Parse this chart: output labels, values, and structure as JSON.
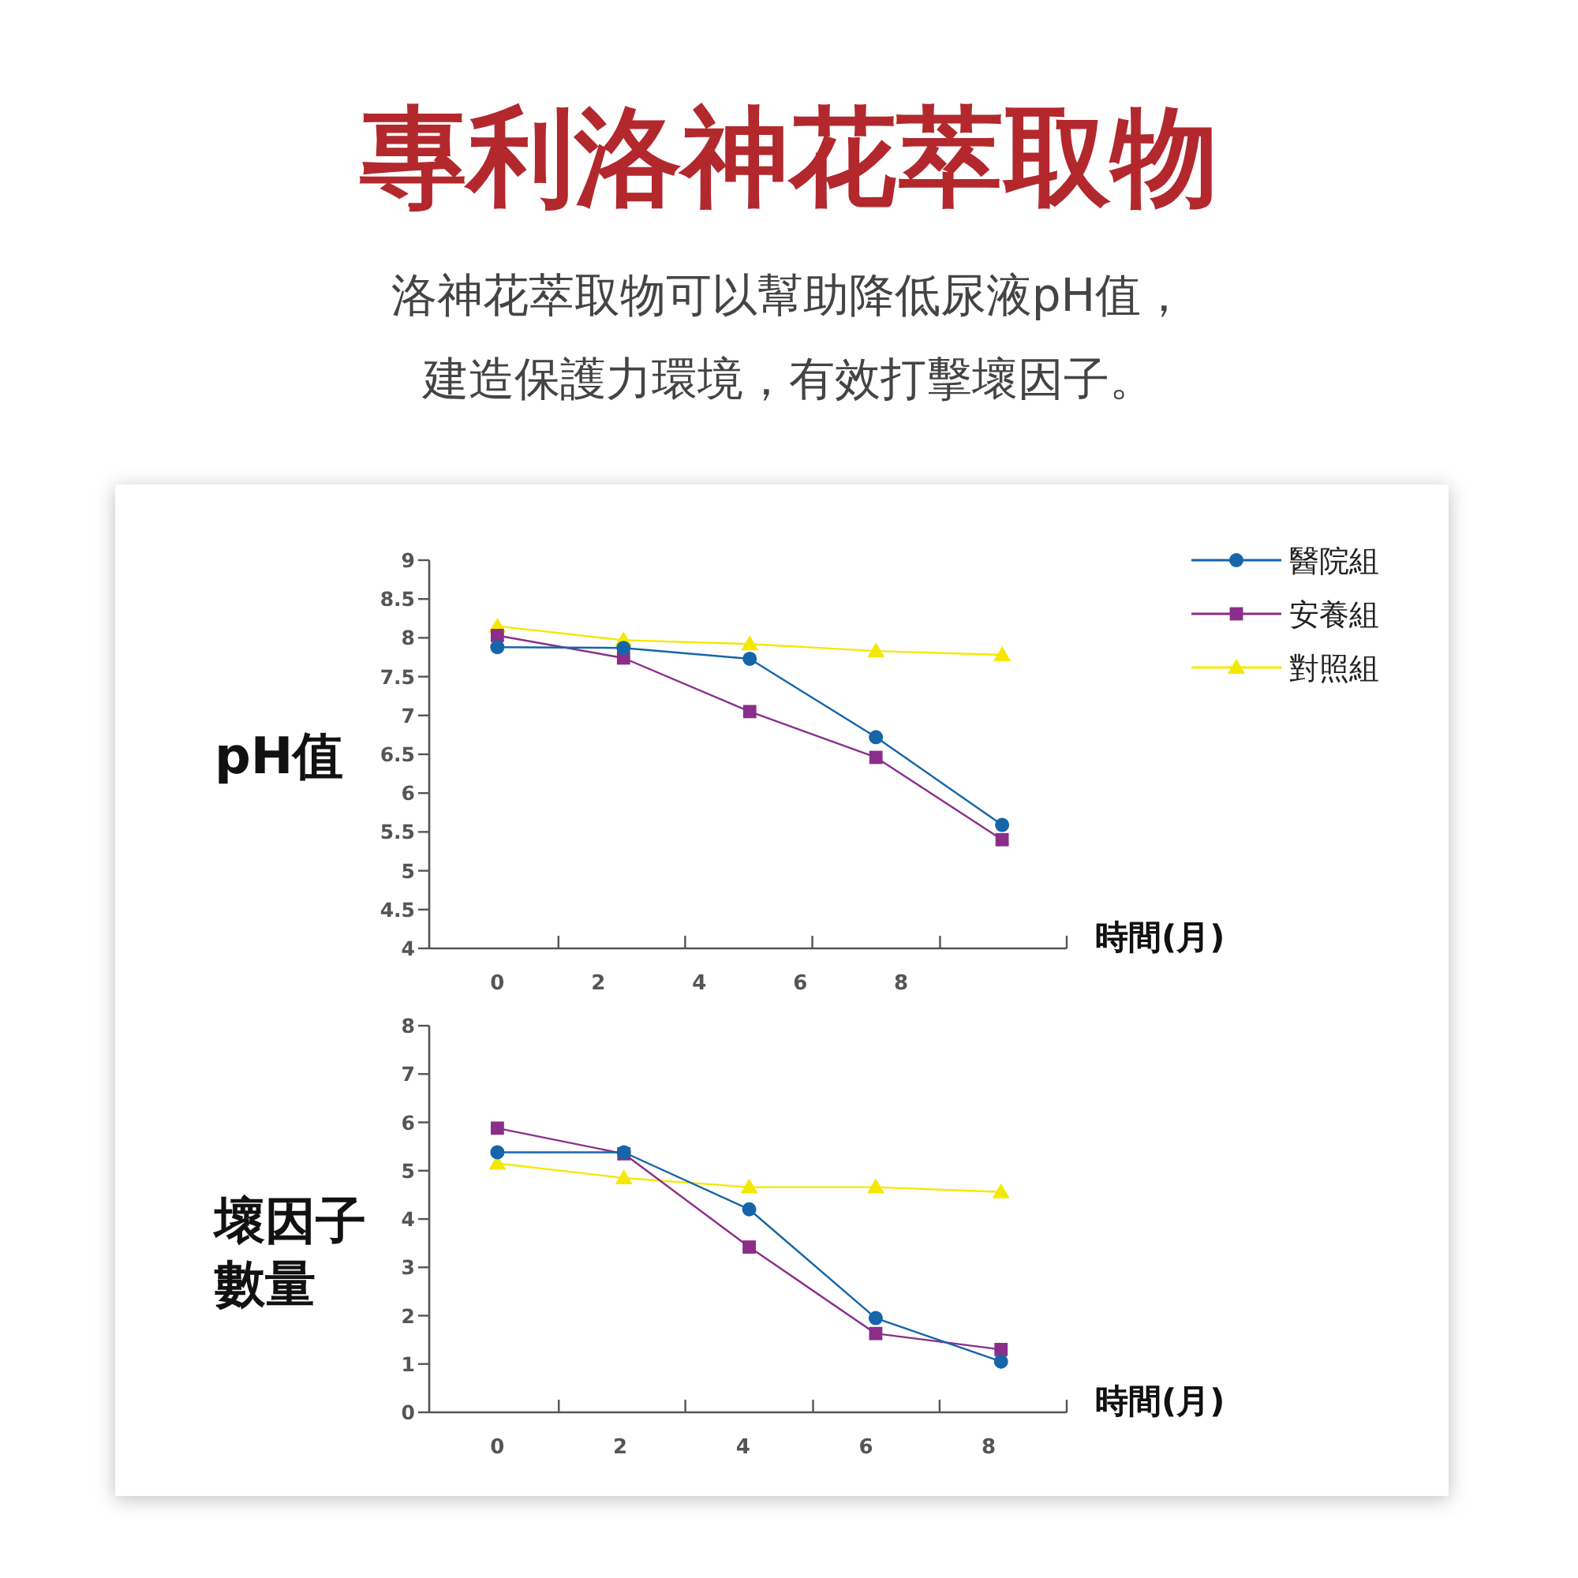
{
  "chart_data": [
    {
      "type": "line",
      "title": "專利洛神花萃取物",
      "subtitle": "洛神花萃取物可以幫助降低尿液pH值，建造保護力環境，有效打擊壞因子。",
      "ylabel": "pH值",
      "xlabel": "時間(月)",
      "legend": "top right",
      "xlim": [
        -1.35,
        11.28
      ],
      "xticks": [
        0,
        2,
        4,
        6,
        8,
        {
          "value": 1.21,
          "label": null
        },
        {
          "value": 3.72,
          "label": null
        },
        {
          "value": 6.24,
          "label": null
        },
        {
          "value": 8.77,
          "label": null
        },
        {
          "value": 11.28,
          "label": null
        }
      ],
      "ylim": [
        4,
        9
      ],
      "yticks": [
        4,
        4.5,
        5,
        5.5,
        6,
        6.5,
        7,
        7.5,
        8,
        8.5,
        9
      ],
      "series": [
        {
          "name": "醫院組",
          "color": "#1565a8",
          "marker": "circle",
          "x": [
            0,
            2.5,
            5,
            7.5,
            10
          ],
          "values": [
            7.88,
            7.87,
            7.73,
            6.72,
            5.59
          ]
        },
        {
          "name": "安養組",
          "color": "#8a2e8a",
          "marker": "square",
          "x": [
            0,
            2.5,
            5,
            7.5,
            10
          ],
          "values": [
            8.03,
            7.74,
            7.05,
            6.46,
            5.4
          ]
        },
        {
          "name": "對照組",
          "color": "#f5e800",
          "marker": "triangle",
          "x": [
            0,
            2.5,
            5,
            7.5,
            10
          ],
          "values": [
            8.15,
            7.97,
            7.92,
            7.83,
            7.78
          ]
        }
      ]
    },
    {
      "type": "line",
      "ylabel": "壞因子數量",
      "xlabel": "時間(月)",
      "xlim": [
        -1.11,
        9.27
      ],
      "xticks": [
        0,
        2,
        4,
        6,
        8,
        {
          "value": 1,
          "label": null
        },
        {
          "value": 3.06,
          "label": null
        },
        {
          "value": 5.14,
          "label": null
        },
        {
          "value": 7.2,
          "label": null
        },
        {
          "value": 9.27,
          "label": null
        }
      ],
      "ylim": [
        0,
        8
      ],
      "yticks": [
        0,
        1,
        2,
        3,
        4,
        5,
        6,
        7,
        8
      ],
      "series": [
        {
          "color": "#1565a8",
          "marker": "circle",
          "x": [
            0,
            2.06,
            4.1,
            6.16,
            8.2
          ],
          "values": [
            5.38,
            5.38,
            4.2,
            1.95,
            1.05
          ]
        },
        {
          "color": "#8a2e8a",
          "marker": "square",
          "x": [
            0,
            2.06,
            4.1,
            6.16,
            8.2
          ],
          "values": [
            5.88,
            5.35,
            3.42,
            1.63,
            1.3
          ]
        },
        {
          "color": "#f5e800",
          "marker": "triangle",
          "x": [
            0,
            2.06,
            4.1,
            6.16,
            8.2
          ],
          "values": [
            5.15,
            4.85,
            4.66,
            4.66,
            4.56
          ]
        }
      ]
    }
  ]
}
